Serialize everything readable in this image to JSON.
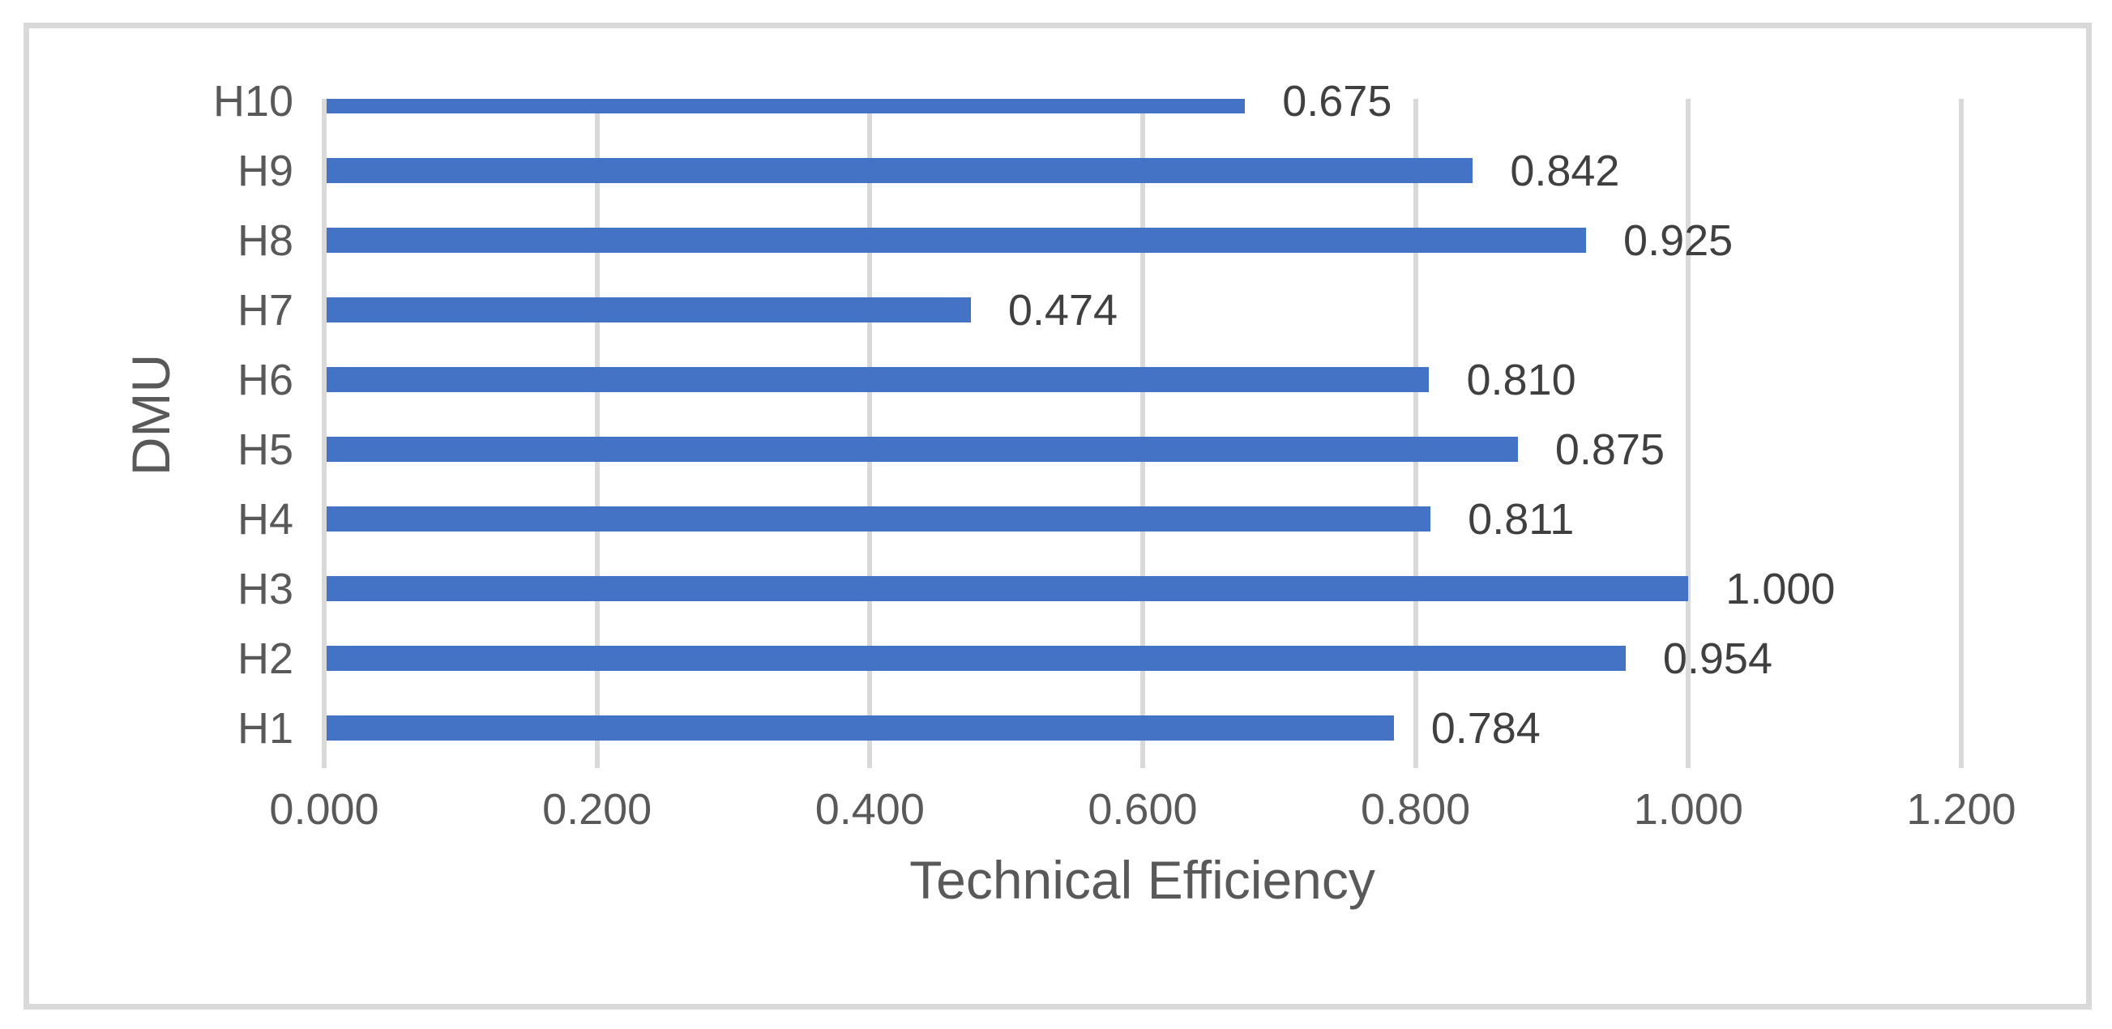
{
  "chart_data": {
    "type": "bar",
    "orientation": "horizontal",
    "title": "",
    "xlabel": "Technical Efficiency",
    "ylabel": "DMU",
    "rows_top_to_bottom": [
      {
        "category": "H10",
        "value": 0.675,
        "label": "0.675"
      },
      {
        "category": "H9",
        "value": 0.842,
        "label": "0.842"
      },
      {
        "category": "H8",
        "value": 0.925,
        "label": "0.925"
      },
      {
        "category": "H7",
        "value": 0.474,
        "label": "0.474"
      },
      {
        "category": "H6",
        "value": 0.81,
        "label": "0.810"
      },
      {
        "category": "H5",
        "value": 0.875,
        "label": "0.875"
      },
      {
        "category": "H4",
        "value": 0.811,
        "label": "0.811"
      },
      {
        "category": "H3",
        "value": 1.0,
        "label": "1.000"
      },
      {
        "category": "H2",
        "value": 0.954,
        "label": "0.954"
      },
      {
        "category": "H1",
        "value": 0.784,
        "label": "0.784"
      }
    ],
    "x_ticks": [
      "0.000",
      "0.200",
      "0.400",
      "0.600",
      "0.800",
      "1.000",
      "1.200"
    ],
    "xlim": [
      0,
      1.2
    ],
    "grid": true,
    "legend": false,
    "colors": {
      "bar": "#4472C4",
      "gridline": "#D9D9D9",
      "frame": "#D9D9D9",
      "axis_text": "#595959",
      "data_label_text": "#404040"
    }
  }
}
